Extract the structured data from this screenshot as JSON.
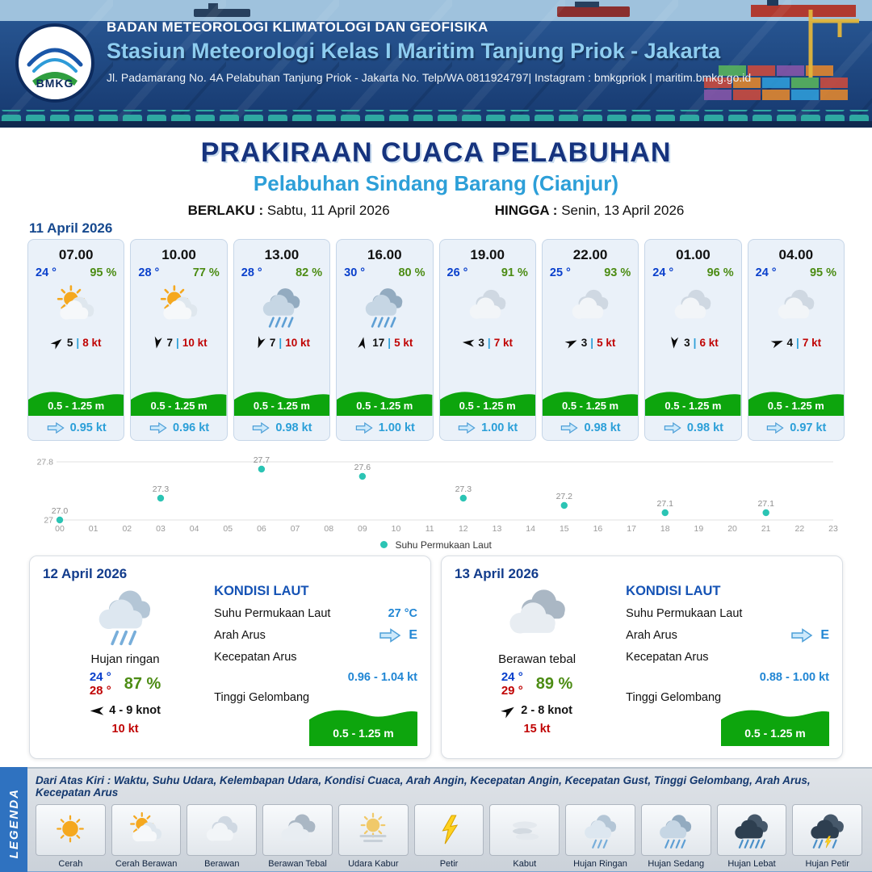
{
  "header": {
    "org": "BADAN METEOROLOGI KLIMATOLOGI DAN GEOFISIKA",
    "station": "Stasiun Meteorologi Kelas I Maritim Tanjung Priok - Jakarta",
    "address": "Jl. Padamarang No. 4A Pelabuhan Tanjung Priok - Jakarta No. Telp/WA 0811924797| Instagram : bmkgpriok | maritim.bmkg.go.id",
    "logo_text": "BMKG"
  },
  "title": {
    "main": "PRAKIRAAN CUACA PELABUHAN",
    "sub": "Pelabuhan Sindang Barang (Cianjur)",
    "valid_label": "BERLAKU :",
    "valid_value": "Sabtu, 11 April 2026",
    "until_label": "HINGGA :",
    "until_value": "Senin, 13 April 2026"
  },
  "forecast": {
    "date": "11 April 2026",
    "sep": "|",
    "cards": [
      {
        "time": "07.00",
        "temp": "24 °",
        "humidity": "95 %",
        "icon": "cerah-berawan",
        "wind_dir_deg": -40,
        "wind": "5",
        "gust": "8 kt",
        "wave": "0.5 - 1.25 m",
        "current": "0.95 kt"
      },
      {
        "time": "10.00",
        "temp": "28 °",
        "humidity": "77 %",
        "icon": "cerah-berawan",
        "wind_dir_deg": 100,
        "wind": "7",
        "gust": "10 kt",
        "wave": "0.5 - 1.25 m",
        "current": "0.96 kt"
      },
      {
        "time": "13.00",
        "temp": "28 °",
        "humidity": "82 %",
        "icon": "hujan-sedang",
        "wind_dir_deg": 110,
        "wind": "7",
        "gust": "10 kt",
        "wave": "0.5 - 1.25 m",
        "current": "0.98 kt"
      },
      {
        "time": "16.00",
        "temp": "30 °",
        "humidity": "80 %",
        "icon": "hujan-sedang",
        "wind_dir_deg": -80,
        "wind": "17",
        "gust": "5 kt",
        "wave": "0.5 - 1.25 m",
        "current": "1.00 kt"
      },
      {
        "time": "19.00",
        "temp": "26 °",
        "humidity": "91 %",
        "icon": "berawan",
        "wind_dir_deg": 185,
        "wind": "3",
        "gust": "7 kt",
        "wave": "0.5 - 1.25 m",
        "current": "1.00 kt"
      },
      {
        "time": "22.00",
        "temp": "25 °",
        "humidity": "93 %",
        "icon": "berawan",
        "wind_dir_deg": -25,
        "wind": "3",
        "gust": "5 kt",
        "wave": "0.5 - 1.25 m",
        "current": "0.98 kt"
      },
      {
        "time": "01.00",
        "temp": "24 °",
        "humidity": "96 %",
        "icon": "berawan",
        "wind_dir_deg": 95,
        "wind": "3",
        "gust": "6 kt",
        "wave": "0.5 - 1.25 m",
        "current": "0.98 kt"
      },
      {
        "time": "04.00",
        "temp": "24 °",
        "humidity": "95 %",
        "icon": "berawan",
        "wind_dir_deg": -20,
        "wind": "4",
        "gust": "7 kt",
        "wave": "0.5 - 1.25 m",
        "current": "0.97 kt"
      }
    ]
  },
  "chart_data": {
    "type": "scatter",
    "series_name": "Suhu Permukaan Laut",
    "x": [
      0,
      3,
      6,
      9,
      12,
      15,
      18,
      21
    ],
    "values": [
      27.0,
      27.3,
      27.7,
      27.6,
      27.3,
      27.2,
      27.1,
      27.1
    ],
    "x_ticks": [
      "00",
      "01",
      "02",
      "03",
      "04",
      "05",
      "06",
      "07",
      "08",
      "09",
      "10",
      "11",
      "12",
      "13",
      "14",
      "15",
      "16",
      "17",
      "18",
      "19",
      "20",
      "21",
      "22",
      "23"
    ],
    "ylim": [
      27,
      27.8
    ],
    "y_ticks": [
      27,
      27.8
    ],
    "point_color": "#2bc4b4",
    "legend_position": "bottom"
  },
  "daily": [
    {
      "date": "12 April 2026",
      "icon": "hujan-ringan",
      "condition": "Hujan ringan",
      "temp_min": "24 °",
      "temp_max": "28 °",
      "humidity": "87 %",
      "wind_dir_deg": 180,
      "wind_range": "4 - 9 knot",
      "gust": "10 kt",
      "sea": {
        "title": "KONDISI LAUT",
        "sst_label": "Suhu Permukaan Laut",
        "sst_value": "27 °C",
        "current_dir_label": "Arah Arus",
        "current_dir": "E",
        "current_speed_label": "Kecepatan Arus",
        "current_speed": "0.96 - 1.04 kt",
        "wave_label": "Tinggi Gelombang",
        "wave": "0.5 - 1.25 m"
      }
    },
    {
      "date": "13 April 2026",
      "icon": "berawan-tebal",
      "condition": "Berawan tebal",
      "temp_min": "24 °",
      "temp_max": "29 °",
      "humidity": "89 %",
      "wind_dir_deg": -35,
      "wind_range": "2 - 8 knot",
      "gust": "15 kt",
      "sea": {
        "title": "KONDISI LAUT",
        "sst_label": "Suhu Permukaan Laut",
        "sst_value": "",
        "current_dir_label": "Arah Arus",
        "current_dir": "E",
        "current_speed_label": "Kecepatan Arus",
        "current_speed": "0.88 - 1.00 kt",
        "wave_label": "Tinggi Gelombang",
        "wave": "0.5 - 1.25 m"
      }
    }
  ],
  "legend": {
    "title": "LEGENDA",
    "caption": "Dari Atas Kiri : Waktu, Suhu Udara, Kelembapan Udara, Kondisi Cuaca, Arah Angin, Kecepatan Angin, Kecepatan Gust, Tinggi Gelombang, Arah Arus, Kecepatan Arus",
    "items": [
      {
        "icon": "cerah",
        "label": "Cerah"
      },
      {
        "icon": "cerah-berawan",
        "label": "Cerah Berawan"
      },
      {
        "icon": "berawan",
        "label": "Berawan"
      },
      {
        "icon": "berawan-tebal",
        "label": "Berawan Tebal"
      },
      {
        "icon": "udara-kabur",
        "label": "Udara Kabur"
      },
      {
        "icon": "petir",
        "label": "Petir"
      },
      {
        "icon": "kabut",
        "label": "Kabut"
      },
      {
        "icon": "hujan-ringan",
        "label": "Hujan Ringan"
      },
      {
        "icon": "hujan-sedang",
        "label": "Hujan Sedang"
      },
      {
        "icon": "hujan-lebat",
        "label": "Hujan Lebat"
      },
      {
        "icon": "hujan-petir",
        "label": "Hujan Petir"
      }
    ]
  },
  "colors": {
    "header_navy": "#16386e",
    "title_blue": "#16337e",
    "subtitle_blue": "#2d9fd8",
    "temp_blue": "#0a40cc",
    "humidity_green": "#4c8c14",
    "gust_red": "#c00404",
    "wave_green": "#0da50d",
    "current_blue": "#2b9fd8",
    "chart_teal": "#2bc4b4"
  }
}
